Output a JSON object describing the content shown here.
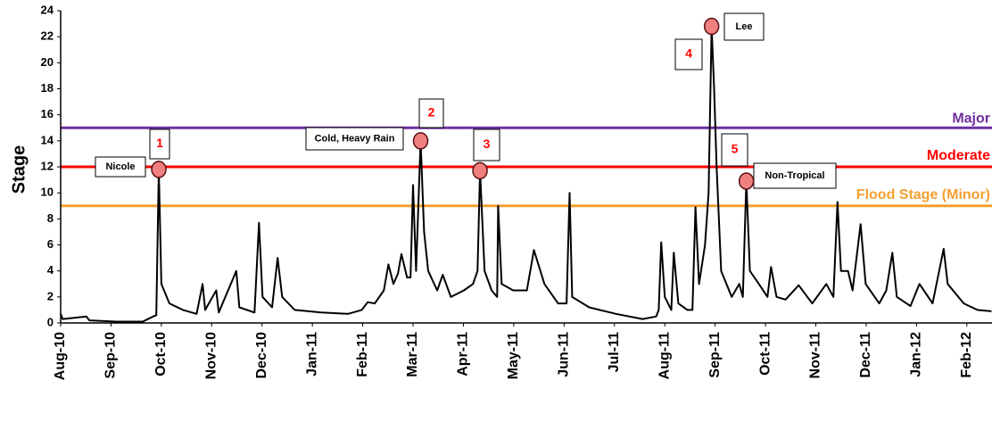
{
  "chart_data": {
    "type": "line",
    "y_label": "Stage",
    "xlim": [
      0,
      18.5
    ],
    "xticks": [
      {
        "value": 0,
        "label": "Aug-10"
      },
      {
        "value": 1,
        "label": "Sep-10"
      },
      {
        "value": 2,
        "label": "Oct-10"
      },
      {
        "value": 3,
        "label": "Nov-10"
      },
      {
        "value": 4,
        "label": "Dec-10"
      },
      {
        "value": 5,
        "label": "Jan-11"
      },
      {
        "value": 6,
        "label": "Feb-11"
      },
      {
        "value": 7,
        "label": "Mar-11"
      },
      {
        "value": 8,
        "label": "Apr-11"
      },
      {
        "value": 9,
        "label": "May-11"
      },
      {
        "value": 10,
        "label": "Jun-11"
      },
      {
        "value": 11,
        "label": "Jul-11"
      },
      {
        "value": 12,
        "label": "Aug-11"
      },
      {
        "value": 13,
        "label": "Sep-11"
      },
      {
        "value": 14,
        "label": "Oct-11"
      },
      {
        "value": 15,
        "label": "Nov-11"
      },
      {
        "value": 16,
        "label": "Dec-11"
      },
      {
        "value": 17,
        "label": "Jan-12"
      },
      {
        "value": 18,
        "label": "Feb-12"
      }
    ],
    "ylim": [
      0,
      24
    ],
    "yticks": [
      0,
      2,
      4,
      6,
      8,
      10,
      12,
      14,
      16,
      18,
      20,
      22,
      24
    ],
    "grid": false,
    "color": "#000000",
    "x": [
      0.0,
      0.04,
      0.51,
      0.57,
      1.1,
      1.63,
      1.84,
      1.9,
      1.95,
      2.0,
      2.16,
      2.43,
      2.7,
      2.82,
      2.87,
      3.09,
      3.14,
      3.49,
      3.55,
      3.85,
      3.94,
      4.01,
      4.2,
      4.31,
      4.4,
      4.65,
      5.18,
      5.71,
      5.98,
      6.1,
      6.24,
      6.42,
      6.51,
      6.61,
      6.7,
      6.77,
      6.88,
      6.95,
      7.0,
      7.06,
      7.15,
      7.22,
      7.3,
      7.48,
      7.59,
      7.75,
      8.01,
      8.19,
      8.28,
      8.33,
      8.42,
      8.56,
      8.67,
      8.69,
      8.76,
      8.99,
      9.26,
      9.4,
      9.61,
      9.88,
      10.05,
      10.11,
      10.16,
      10.5,
      11.03,
      11.56,
      11.83,
      11.88,
      11.93,
      12.0,
      12.13,
      12.18,
      12.27,
      12.45,
      12.55,
      12.61,
      12.68,
      12.8,
      12.87,
      12.93,
      12.98,
      13.03,
      13.12,
      13.33,
      13.48,
      13.55,
      13.62,
      13.69,
      13.87,
      14.04,
      14.11,
      14.22,
      14.4,
      14.66,
      14.93,
      15.21,
      15.35,
      15.43,
      15.5,
      15.64,
      15.73,
      15.89,
      15.99,
      16.26,
      16.4,
      16.52,
      16.61,
      16.88,
      17.06,
      17.32,
      17.54,
      17.62,
      17.94,
      18.21,
      18.49
    ],
    "values": [
      0.7,
      0.3,
      0.5,
      0.2,
      0.1,
      0.1,
      0.5,
      0.6,
      11.8,
      3.0,
      1.5,
      1.0,
      0.7,
      3.0,
      1.0,
      2.5,
      0.8,
      4.0,
      1.2,
      0.8,
      7.7,
      2.0,
      1.2,
      5.0,
      2.0,
      1.0,
      0.8,
      0.7,
      1.0,
      1.6,
      1.5,
      2.5,
      4.5,
      3.0,
      3.8,
      5.3,
      3.5,
      3.5,
      10.6,
      4.0,
      14.0,
      7.0,
      4.0,
      2.5,
      3.7,
      2.0,
      2.5,
      3.0,
      4.0,
      11.7,
      4.0,
      2.5,
      2.0,
      9.0,
      3.0,
      2.5,
      2.5,
      5.6,
      3.0,
      1.5,
      1.5,
      10.0,
      2.0,
      1.2,
      0.7,
      0.3,
      0.5,
      1.0,
      6.2,
      2.0,
      1.0,
      5.4,
      1.5,
      1.0,
      1.0,
      8.9,
      3.0,
      6.0,
      10.0,
      22.8,
      18.0,
      12.0,
      4.0,
      2.0,
      3.0,
      2.0,
      10.9,
      4.0,
      3.0,
      2.0,
      4.3,
      2.0,
      1.8,
      2.9,
      1.5,
      3.0,
      2.0,
      9.3,
      4.0,
      4.0,
      2.5,
      7.6,
      3.0,
      1.5,
      2.5,
      5.4,
      2.0,
      1.3,
      3.0,
      1.5,
      5.7,
      3.0,
      1.5,
      1.0,
      0.9
    ],
    "thresholds": [
      {
        "name": "Major",
        "value": 15,
        "color": "#7030a0"
      },
      {
        "name": "Moderate",
        "value": 12,
        "color": "#ff0000"
      },
      {
        "name": "Flood Stage (Minor)",
        "value": 9,
        "color": "#f4a030"
      }
    ],
    "annotations": [
      {
        "number": 1,
        "label": "Nicole",
        "x": 1.95,
        "y": 11.8
      },
      {
        "number": 2,
        "label": "Cold, Heavy Rain",
        "x": 7.15,
        "y": 14.0
      },
      {
        "number": 3,
        "x": 8.33,
        "y": 11.7
      },
      {
        "number": 4,
        "label": "Lee",
        "x": 12.93,
        "y": 22.8
      },
      {
        "number": 5,
        "label": "Non-Tropical",
        "x": 13.62,
        "y": 10.9
      }
    ]
  }
}
